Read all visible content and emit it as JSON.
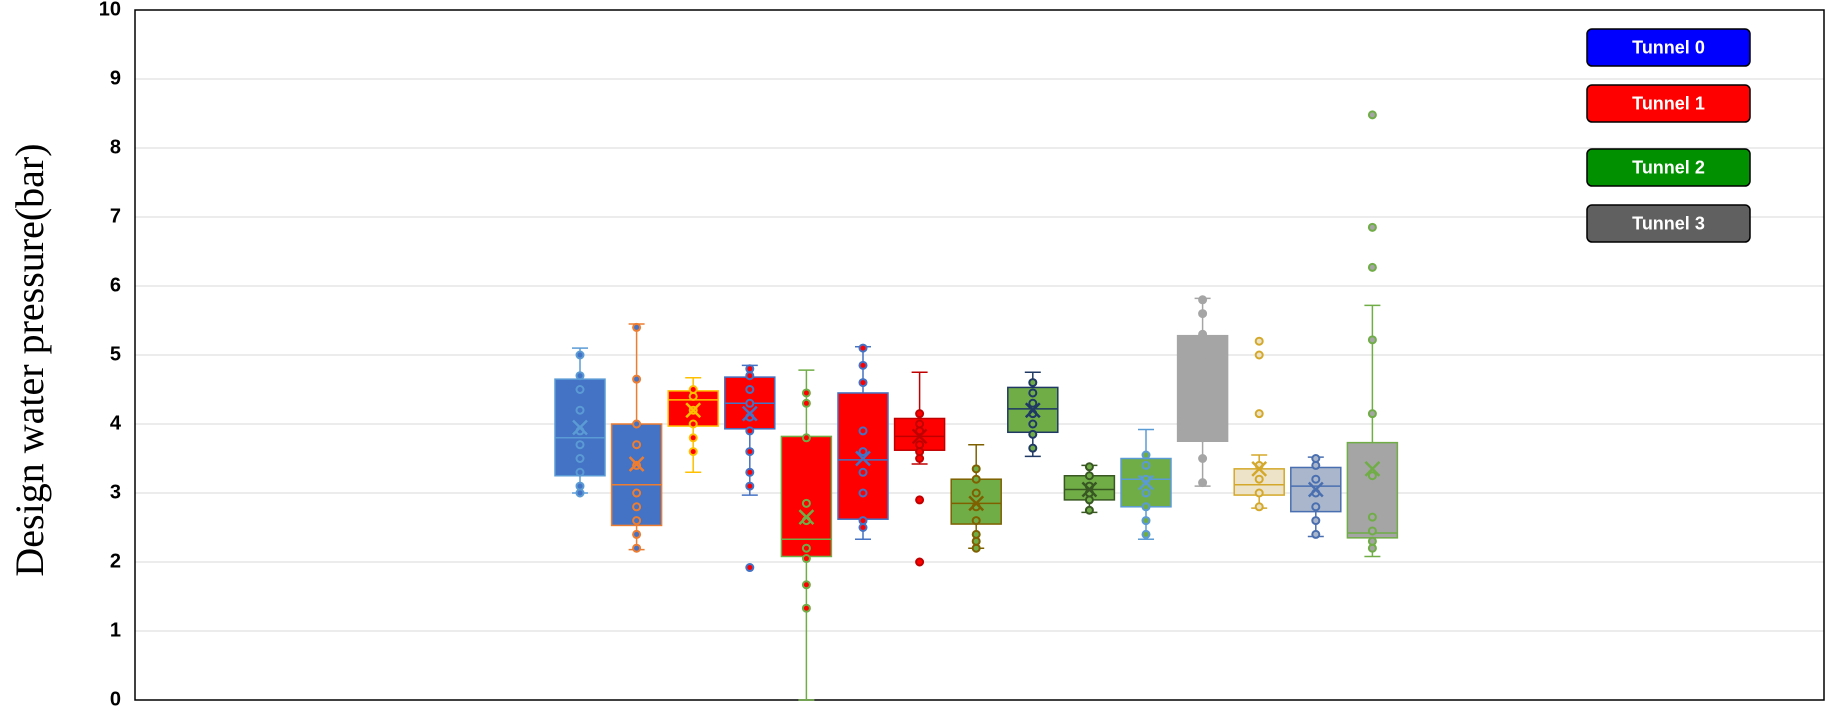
{
  "chart_data": {
    "type": "box",
    "y_label": "Design water pressure(bar)",
    "ylim": [
      0,
      10
    ],
    "yticks": [
      0,
      1,
      2,
      3,
      4,
      5,
      6,
      7,
      8,
      9,
      10
    ],
    "grid": true,
    "legend_position": "upper right",
    "legend": [
      {
        "name": "Tunnel 0",
        "color": "#0000ff"
      },
      {
        "name": "Tunnel 1",
        "color": "#ff0000"
      },
      {
        "name": "Tunnel 2",
        "color": "#009000"
      },
      {
        "name": "Tunnel 3",
        "color": "#606060"
      }
    ],
    "boxes": [
      {
        "color": "#4472c4",
        "edge": "#5b9bd5",
        "min": 3.0,
        "q1": 3.25,
        "median": 3.8,
        "q3": 4.65,
        "max": 5.1,
        "mean": 3.95,
        "points": [
          3.0,
          3.1,
          3.3,
          3.5,
          3.7,
          3.9,
          4.2,
          4.5,
          4.7,
          5.0
        ]
      },
      {
        "color": "#4472c4",
        "edge": "#ed7d31",
        "min": 2.18,
        "q1": 2.53,
        "median": 3.12,
        "q3": 4.0,
        "max": 5.45,
        "mean": 3.42,
        "points": [
          2.2,
          2.4,
          2.6,
          2.8,
          3.0,
          3.4,
          3.7,
          4.0,
          4.65,
          5.4
        ]
      },
      {
        "color": "#ff0000",
        "edge": "#ffc000",
        "min": 3.3,
        "q1": 3.97,
        "median": 4.35,
        "q3": 4.48,
        "max": 4.67,
        "mean": 4.2,
        "points": [
          3.6,
          3.8,
          4.0,
          4.2,
          4.4,
          4.5
        ]
      },
      {
        "color": "#ff0000",
        "edge": "#4472c4",
        "min": 2.97,
        "q1": 3.93,
        "median": 4.3,
        "q3": 4.68,
        "max": 4.85,
        "mean": 4.15,
        "points": [
          1.92,
          3.1,
          3.3,
          3.6,
          3.9,
          4.1,
          4.3,
          4.5,
          4.7,
          4.8
        ]
      },
      {
        "color": "#ff0000",
        "edge": "#70ad47",
        "min": 0,
        "q1": 2.08,
        "median": 2.33,
        "q3": 3.82,
        "max": 4.78,
        "mean": 2.65,
        "points": [
          1.33,
          1.67,
          2.05,
          2.2,
          2.6,
          2.85,
          3.8,
          4.3,
          4.45
        ]
      },
      {
        "color": "#ff0000",
        "edge": "#4472c4",
        "min": 2.33,
        "q1": 2.62,
        "median": 3.48,
        "q3": 4.45,
        "max": 5.12,
        "mean": 3.5,
        "points": [
          2.5,
          2.6,
          3.0,
          3.3,
          3.6,
          3.9,
          4.6,
          4.85,
          5.1
        ]
      },
      {
        "color": "#ff0000",
        "edge": "#c00000",
        "min": 3.42,
        "q1": 3.62,
        "median": 3.82,
        "q3": 4.08,
        "max": 4.75,
        "mean": 3.82,
        "points": [
          2.0,
          2.9,
          3.5,
          3.6,
          3.7,
          3.9,
          4.0,
          4.15
        ]
      },
      {
        "color": "#70ad47",
        "edge": "#7f6000",
        "min": 2.2,
        "q1": 2.55,
        "median": 2.85,
        "q3": 3.2,
        "max": 3.7,
        "mean": 2.85,
        "points": [
          2.2,
          2.3,
          2.4,
          2.6,
          2.8,
          3.0,
          3.2,
          3.35
        ]
      },
      {
        "color": "#70ad47",
        "edge": "#1f3864",
        "min": 3.53,
        "q1": 3.88,
        "median": 4.22,
        "q3": 4.53,
        "max": 4.75,
        "mean": 4.2,
        "points": [
          3.65,
          3.85,
          4.0,
          4.15,
          4.3,
          4.45,
          4.6
        ]
      },
      {
        "color": "#70ad47",
        "edge": "#385723",
        "min": 2.72,
        "q1": 2.9,
        "median": 3.05,
        "q3": 3.25,
        "max": 3.4,
        "mean": 3.05,
        "points": [
          2.75,
          2.9,
          3.0,
          3.1,
          3.25,
          3.38
        ]
      },
      {
        "color": "#70ad47",
        "edge": "#5b9bd5",
        "min": 2.33,
        "q1": 2.8,
        "median": 3.2,
        "q3": 3.5,
        "max": 3.92,
        "mean": 3.15,
        "points": [
          2.4,
          2.6,
          2.8,
          3.0,
          3.2,
          3.4,
          3.55
        ]
      },
      {
        "color": "#a5a5a5",
        "edge": "#a5a5a5",
        "min": 3.1,
        "q1": 3.75,
        "median": 4.7,
        "q3": 5.28,
        "max": 5.82,
        "mean": 4.5,
        "points": [
          3.15,
          3.5,
          3.8,
          4.5,
          4.8,
          5.0,
          5.3,
          5.6,
          5.8
        ]
      },
      {
        "color": "#ede3c8",
        "edge": "#d4a82a",
        "min": 2.78,
        "q1": 2.97,
        "median": 3.12,
        "q3": 3.35,
        "max": 3.55,
        "mean": 3.35,
        "points": [
          2.8,
          3.0,
          3.2,
          3.4,
          4.15,
          5.0,
          5.2
        ]
      },
      {
        "color": "#a9b6cc",
        "edge": "#4a6fb0",
        "min": 2.37,
        "q1": 2.73,
        "median": 3.1,
        "q3": 3.37,
        "max": 3.52,
        "mean": 3.05,
        "points": [
          2.4,
          2.6,
          2.8,
          3.0,
          3.2,
          3.4,
          3.5
        ]
      },
      {
        "color": "#a5a5a5",
        "edge": "#70ad47",
        "min": 2.08,
        "q1": 2.35,
        "median": 2.42,
        "q3": 3.73,
        "max": 5.72,
        "mean": 3.35,
        "points": [
          2.2,
          2.3,
          2.45,
          2.65,
          3.25,
          4.15,
          5.22,
          6.27,
          6.85,
          8.48
        ]
      }
    ]
  }
}
